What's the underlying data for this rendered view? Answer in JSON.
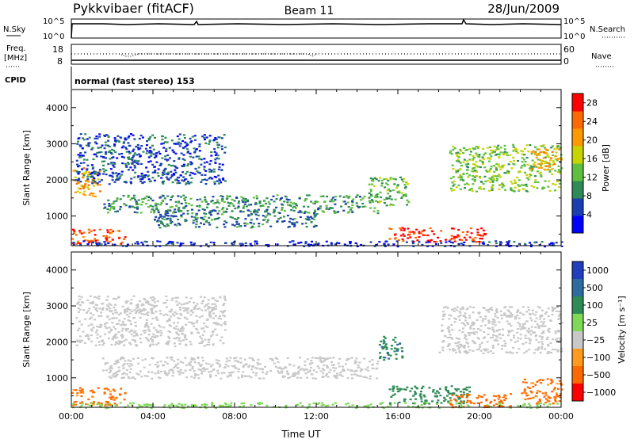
{
  "header": {
    "station": "Pykkvibaer (fitACF)",
    "beam": "Beam 11",
    "date": "28/Jun/2009"
  },
  "strip_panels": {
    "noise": {
      "left_label": "N.Sky",
      "right_label": "N.Search",
      "ticks_left": [
        "10^5",
        "10^0"
      ],
      "ticks_right": [
        "10^5",
        "10^0"
      ]
    },
    "freq": {
      "left_label_1": "Freq.",
      "left_label_2": "[MHz]",
      "right_label": "Nave",
      "ticks_left": [
        "18",
        "8"
      ],
      "ticks_right": [
        "60",
        "0"
      ]
    },
    "cpid": {
      "label": "CPID",
      "program": "normal (fast stereo) 153"
    }
  },
  "chart_data": [
    {
      "type": "heatmap",
      "title": "",
      "xlabel": "",
      "ylabel": "Slant Range [km]",
      "x_ticks": [
        "00:00",
        "04:00",
        "08:00",
        "12:00",
        "16:00",
        "20:00",
        "00:00"
      ],
      "y_ticks": [
        "1000",
        "2000",
        "3000",
        "4000"
      ],
      "xlim_hours": [
        0,
        24
      ],
      "ylim_km": [
        180,
        4500
      ],
      "colorbar": {
        "label": "Power [dB]",
        "ticks": [
          "4",
          "8",
          "12",
          "16",
          "20",
          "24",
          "28"
        ],
        "range": [
          0,
          30
        ],
        "colors": [
          "#0000ff",
          "#1a3fb0",
          "#2e8b57",
          "#5fbf3f",
          "#c8d400",
          "#ff9900",
          "#ff6a00",
          "#ff0000"
        ]
      },
      "regions": [
        {
          "t0": 0.0,
          "t1": 1.4,
          "r0": 1550,
          "r1": 2350,
          "value": 20
        },
        {
          "t0": 0.0,
          "t1": 2.6,
          "r0": 230,
          "r1": 650,
          "value": 26
        },
        {
          "t0": 0.2,
          "t1": 7.5,
          "r0": 1900,
          "r1": 3300,
          "value": 6
        },
        {
          "t0": 1.5,
          "t1": 15.0,
          "r0": 1100,
          "r1": 1600,
          "value": 10
        },
        {
          "t0": 4.0,
          "t1": 12.0,
          "r0": 700,
          "r1": 1200,
          "value": 8
        },
        {
          "t0": 14.5,
          "t1": 16.5,
          "r0": 1300,
          "r1": 2100,
          "value": 12
        },
        {
          "t0": 15.5,
          "t1": 20.3,
          "r0": 300,
          "r1": 700,
          "value": 28
        },
        {
          "t0": 18.5,
          "t1": 24.0,
          "r0": 1700,
          "r1": 3000,
          "value": 14
        },
        {
          "t0": 22.5,
          "t1": 24.0,
          "r0": 2300,
          "r1": 2900,
          "value": 20
        },
        {
          "t0": 0.0,
          "t1": 24.0,
          "r0": 180,
          "r1": 330,
          "value": 4
        }
      ]
    },
    {
      "type": "heatmap",
      "title": "",
      "xlabel": "Time UT",
      "ylabel": "Slant Range [km]",
      "x_ticks": [
        "00:00",
        "04:00",
        "08:00",
        "12:00",
        "16:00",
        "20:00",
        "00:00"
      ],
      "y_ticks": [
        "1000",
        "2000",
        "3000",
        "4000"
      ],
      "xlim_hours": [
        0,
        24
      ],
      "ylim_km": [
        180,
        4500
      ],
      "colorbar": {
        "label": "Velocity [m s⁻¹]",
        "ticks": [
          "1000",
          "500",
          "100",
          "25",
          "−25",
          "−100",
          "−500",
          "−1000"
        ],
        "colors": [
          "#1f3fbf",
          "#2e6b9e",
          "#2e8b57",
          "#7ed957",
          "#c8c8c8",
          "#ff9a1f",
          "#ff6a00",
          "#ff0000"
        ]
      },
      "regions": [
        {
          "t0": 0.2,
          "t1": 7.5,
          "r0": 1900,
          "r1": 3300,
          "value": 0
        },
        {
          "t0": 1.5,
          "t1": 15.0,
          "r0": 1000,
          "r1": 1600,
          "value": 0
        },
        {
          "t0": 0.0,
          "t1": 2.6,
          "r0": 250,
          "r1": 750,
          "value": -150
        },
        {
          "t0": 0.0,
          "t1": 24.0,
          "r0": 180,
          "r1": 330,
          "value": 60
        },
        {
          "t0": 15.0,
          "t1": 16.2,
          "r0": 1500,
          "r1": 2200,
          "value": 300
        },
        {
          "t0": 15.5,
          "t1": 19.5,
          "r0": 300,
          "r1": 800,
          "value": 200
        },
        {
          "t0": 18.5,
          "t1": 21.5,
          "r0": 200,
          "r1": 600,
          "value": -300
        },
        {
          "t0": 18.0,
          "t1": 24.0,
          "r0": 1700,
          "r1": 3000,
          "value": 0
        },
        {
          "t0": 22.0,
          "t1": 24.0,
          "r0": 300,
          "r1": 1000,
          "value": -150
        }
      ]
    }
  ]
}
